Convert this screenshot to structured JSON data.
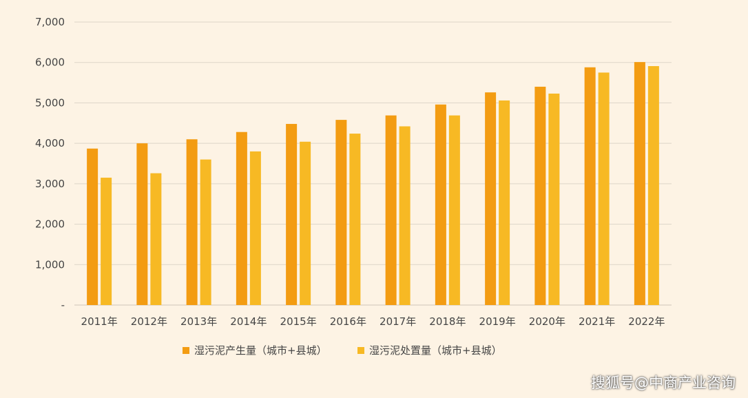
{
  "chart_data": {
    "type": "bar",
    "categories": [
      "2011年",
      "2012年",
      "2013年",
      "2014年",
      "2015年",
      "2016年",
      "2017年",
      "2018年",
      "2019年",
      "2020年",
      "2021年",
      "2022年"
    ],
    "series": [
      {
        "name": "湿污泥产生量（城市+县城）",
        "values": [
          3870,
          4000,
          4100,
          4280,
          4480,
          4580,
          4690,
          4960,
          5260,
          5400,
          5880,
          6010
        ],
        "color": "#f39c12"
      },
      {
        "name": "湿污泥处置量（城市+县城）",
        "values": [
          3150,
          3260,
          3600,
          3800,
          4040,
          4240,
          4420,
          4690,
          5060,
          5230,
          5750,
          5910
        ],
        "color": "#f7b924"
      }
    ],
    "ylim": [
      0,
      7000
    ],
    "yticks": [
      0,
      1000,
      2000,
      3000,
      4000,
      5000,
      6000,
      7000
    ],
    "ytick_labels": [
      "-",
      "1,000",
      "2,000",
      "3,000",
      "4,000",
      "5,000",
      "6,000",
      "7,000"
    ],
    "grid": true,
    "legend_position": "bottom",
    "title": "",
    "xlabel": "",
    "ylabel": ""
  },
  "watermark": "搜狐号@中商产业咨询"
}
